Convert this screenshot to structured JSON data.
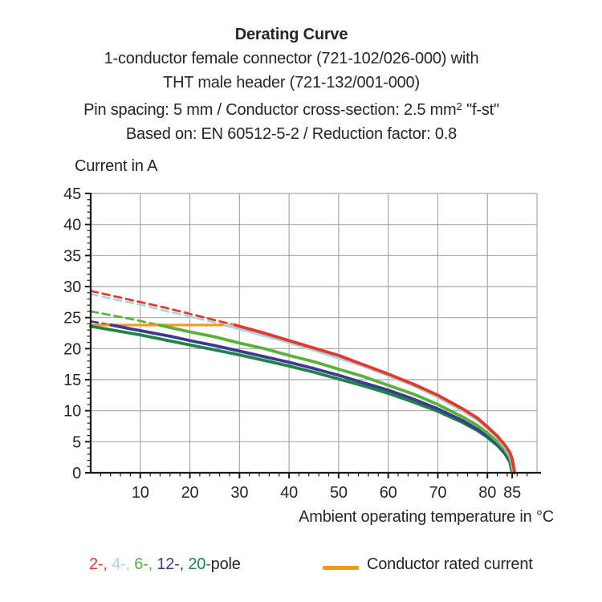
{
  "title": {
    "heading": "Derating Curve",
    "line2": "1-conductor female connector (721-102/026-000) with",
    "line3": "THT male header (721-132/001-000)",
    "line4_pre": "Pin spacing: 5 mm / Conductor cross-section: 2.5 mm",
    "line4_sup": "2",
    "line4_post": " \"f-st\"",
    "line5": "Based on: EN 60512-5-2 / Reduction factor: 0.8"
  },
  "y_axis_label": "Current in A",
  "x_axis_label": "Ambient operating temperature in °C",
  "legend": {
    "pole_tokens": [
      {
        "label": "2-, ",
        "color": "#e5372b"
      },
      {
        "label": "4-, ",
        "color": "#a7d5de"
      },
      {
        "label": "6-, ",
        "color": "#58b23a"
      },
      {
        "label": "12-, ",
        "color": "#3c3b93"
      },
      {
        "label": "20-",
        "color": "#1f8448"
      }
    ],
    "pole_suffix": "pole",
    "rated_label": "Conductor rated current",
    "rated_color": "#f39a1e"
  },
  "chart_data": {
    "type": "line",
    "title": "Derating Curve",
    "xlabel": "Ambient operating temperature in °C",
    "ylabel": "Current in A",
    "xlim": [
      0,
      90
    ],
    "ylim": [
      0,
      45
    ],
    "x_ticks": [
      10,
      20,
      30,
      40,
      50,
      60,
      70,
      80,
      85
    ],
    "x_minor_tick_step": 2,
    "y_ticks": [
      0,
      5,
      10,
      15,
      20,
      25,
      30,
      35,
      40,
      45
    ],
    "y_minor_tick_step": 1,
    "grid": {
      "x_step": 10,
      "y_step": 5,
      "color": "#a8a8a8"
    },
    "axis_color": "#1c1c1c",
    "rated_current": {
      "label": "Conductor rated current",
      "color": "#f39a1e",
      "value": 23.8,
      "x_start": 0,
      "x_end": 29.1
    },
    "series": [
      {
        "name": "2-pole",
        "color": "#e5372b",
        "dashed_points": [
          [
            0,
            29.3
          ],
          [
            5,
            28.4
          ],
          [
            10,
            27.5
          ],
          [
            15,
            26.6
          ],
          [
            20,
            25.6
          ],
          [
            25,
            24.6
          ],
          [
            29.1,
            23.8
          ]
        ],
        "solid_points": [
          [
            29.1,
            23.8
          ],
          [
            35,
            22.5
          ],
          [
            40,
            21.3
          ],
          [
            45,
            20.1
          ],
          [
            50,
            18.9
          ],
          [
            55,
            17.4
          ],
          [
            60,
            15.9
          ],
          [
            65,
            14.3
          ],
          [
            70,
            12.5
          ],
          [
            75,
            10.3
          ],
          [
            78,
            8.8
          ],
          [
            80,
            7.4
          ],
          [
            82,
            5.9
          ],
          [
            83.5,
            4.5
          ],
          [
            84.5,
            3.3
          ],
          [
            85,
            2.2
          ],
          [
            85.5,
            0
          ]
        ]
      },
      {
        "name": "4-pole",
        "color": "#a7d5de",
        "dashed_points": [
          [
            0,
            28.8
          ],
          [
            5,
            27.9
          ],
          [
            10,
            27.1
          ],
          [
            15,
            26.1
          ],
          [
            20,
            25.2
          ],
          [
            25,
            24.2
          ],
          [
            27.1,
            23.8
          ]
        ],
        "solid_points": [
          [
            27.1,
            23.8
          ],
          [
            30,
            23.2
          ],
          [
            35,
            22.1
          ],
          [
            40,
            21.0
          ],
          [
            45,
            19.8
          ],
          [
            50,
            18.5
          ],
          [
            55,
            17.2
          ],
          [
            60,
            15.7
          ],
          [
            65,
            14.1
          ],
          [
            70,
            12.2
          ],
          [
            75,
            10.0
          ],
          [
            78,
            8.5
          ],
          [
            80,
            7.2
          ],
          [
            82,
            5.7
          ],
          [
            83.5,
            4.2
          ],
          [
            84.5,
            2.9
          ],
          [
            85,
            1.8
          ],
          [
            85.35,
            0
          ]
        ]
      },
      {
        "name": "6-pole",
        "color": "#58b23a",
        "dashed_points": [
          [
            0,
            26.0
          ],
          [
            4,
            25.4
          ],
          [
            8,
            24.8
          ],
          [
            12,
            24.1
          ],
          [
            13.8,
            23.8
          ]
        ],
        "solid_points": [
          [
            13.8,
            23.8
          ],
          [
            16,
            23.4
          ],
          [
            20,
            22.7
          ],
          [
            25,
            21.9
          ],
          [
            30,
            20.9
          ],
          [
            35,
            20.0
          ],
          [
            40,
            18.9
          ],
          [
            45,
            17.9
          ],
          [
            50,
            16.7
          ],
          [
            55,
            15.5
          ],
          [
            60,
            14.1
          ],
          [
            65,
            12.7
          ],
          [
            70,
            11.0
          ],
          [
            75,
            9.0
          ],
          [
            78,
            7.6
          ],
          [
            80,
            6.4
          ],
          [
            82,
            5.0
          ],
          [
            83.5,
            3.7
          ],
          [
            84.5,
            2.4
          ],
          [
            85.2,
            0
          ]
        ]
      },
      {
        "name": "12-pole",
        "color": "#3c3b93",
        "dashed_points": [
          [
            0,
            24.4
          ],
          [
            2,
            24.1
          ],
          [
            4.1,
            23.8
          ]
        ],
        "solid_points": [
          [
            4.1,
            23.8
          ],
          [
            8,
            23.2
          ],
          [
            12,
            22.6
          ],
          [
            16,
            22.0
          ],
          [
            20,
            21.3
          ],
          [
            25,
            20.5
          ],
          [
            30,
            19.6
          ],
          [
            35,
            18.7
          ],
          [
            40,
            17.8
          ],
          [
            45,
            16.8
          ],
          [
            50,
            15.7
          ],
          [
            55,
            14.5
          ],
          [
            60,
            13.3
          ],
          [
            65,
            11.9
          ],
          [
            70,
            10.3
          ],
          [
            75,
            8.4
          ],
          [
            78,
            7.0
          ],
          [
            80,
            6.0
          ],
          [
            82,
            4.7
          ],
          [
            83.5,
            3.3
          ],
          [
            84.5,
            2.0
          ],
          [
            85.1,
            0
          ]
        ]
      },
      {
        "name": "20-pole",
        "color": "#1f8448",
        "solid_points": [
          [
            0,
            23.6
          ],
          [
            5,
            22.9
          ],
          [
            10,
            22.2
          ],
          [
            15,
            21.4
          ],
          [
            20,
            20.6
          ],
          [
            25,
            19.8
          ],
          [
            30,
            19.0
          ],
          [
            35,
            18.1
          ],
          [
            40,
            17.2
          ],
          [
            45,
            16.2
          ],
          [
            50,
            15.1
          ],
          [
            55,
            14.0
          ],
          [
            60,
            12.8
          ],
          [
            65,
            11.4
          ],
          [
            70,
            9.9
          ],
          [
            75,
            8.1
          ],
          [
            78,
            6.8
          ],
          [
            80,
            5.7
          ],
          [
            82,
            4.4
          ],
          [
            83.5,
            3.1
          ],
          [
            84.5,
            1.8
          ],
          [
            85,
            0
          ]
        ]
      }
    ]
  }
}
